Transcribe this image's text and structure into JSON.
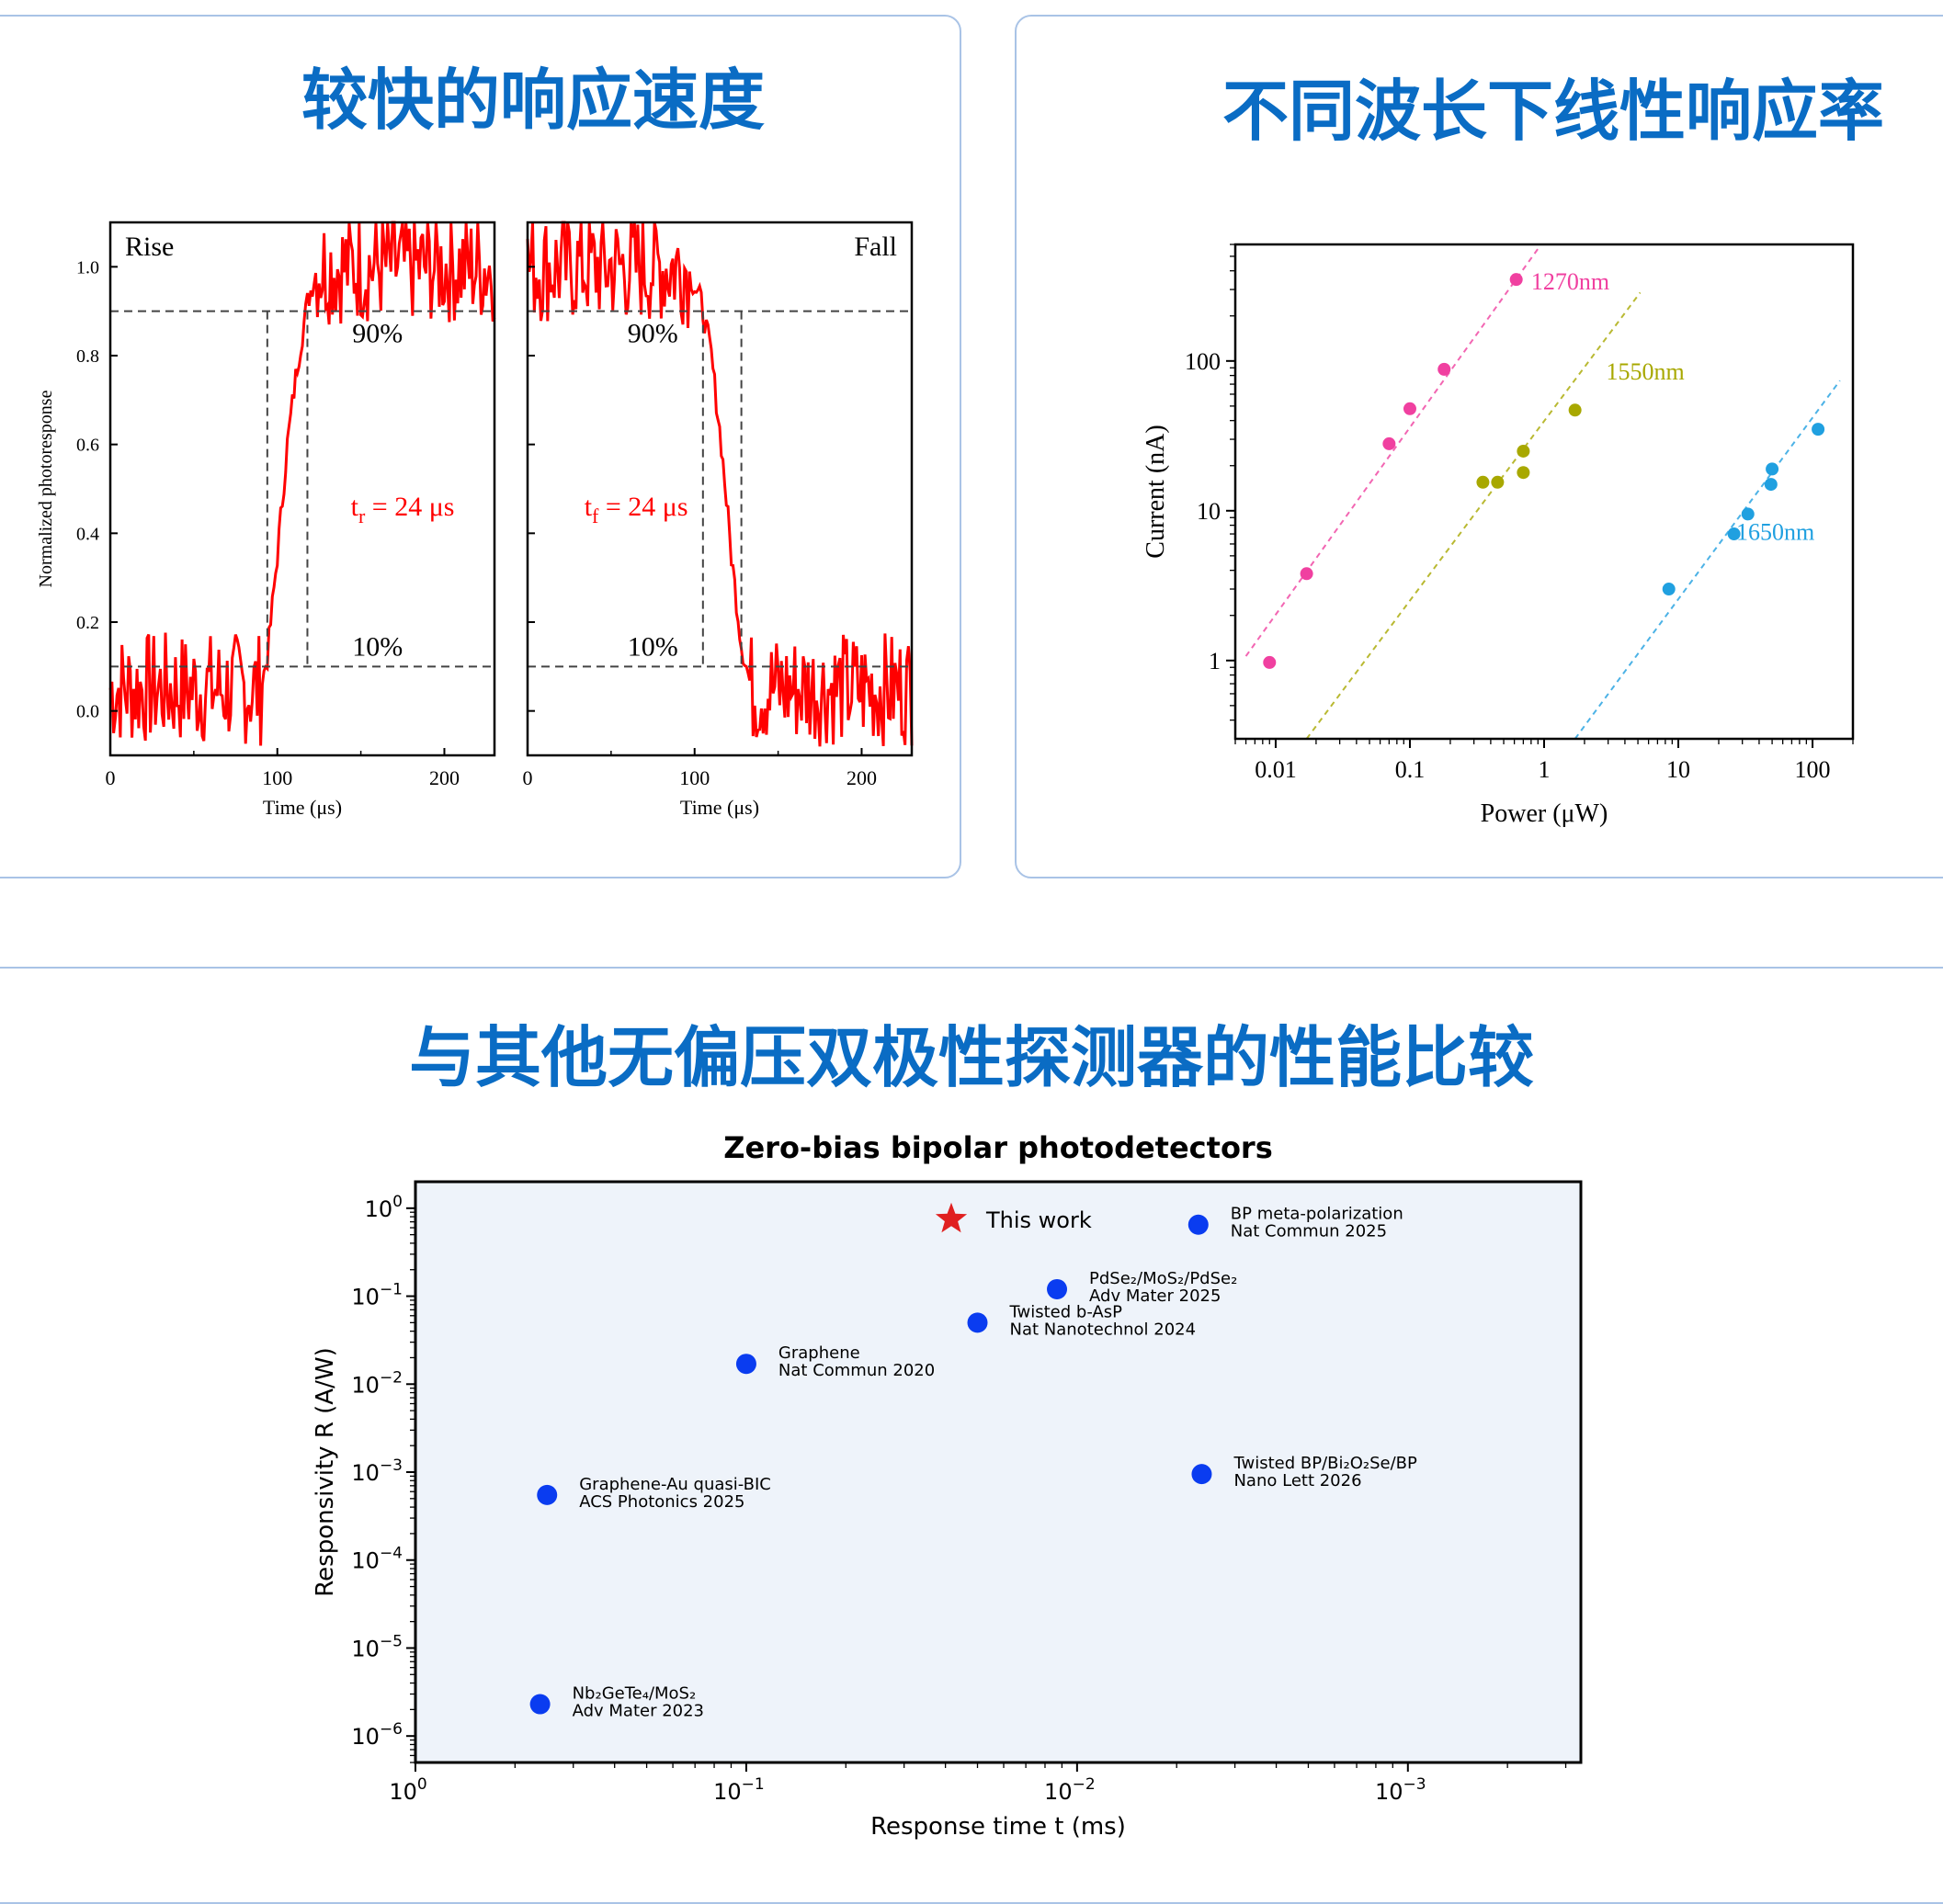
{
  "panels": {
    "speed_title": "较快的响应速度",
    "linear_title": "不同波长下线性响应率",
    "compare_title": "与其他无偏压双极性探测器的性能比较"
  },
  "colors": {
    "title_blue": "#0a6cc4",
    "trace_red": "#ff0000",
    "pink": "#f040a0",
    "olive": "#a8a800",
    "cyan": "#20a0e0",
    "marker_blue": "#0a3cf0",
    "star_red": "#e02020",
    "plot_bg": "#eef3fa"
  },
  "chart_data": [
    {
      "type": "line",
      "subplot": "rise",
      "label": "Rise",
      "ylabel": "Normalized photoresponse",
      "xlabel": "Time (μs)",
      "xlim": [
        0,
        230
      ],
      "ylim": [
        -0.1,
        1.1
      ],
      "xticks": [
        0,
        100,
        200
      ],
      "yticks": [
        0.0,
        0.2,
        0.4,
        0.6,
        0.8,
        1.0
      ],
      "ytick_labels": [
        "0.0",
        "0.2",
        "0.4",
        "0.6",
        "0.8",
        "1.0"
      ],
      "threshold_labels": [
        "90%",
        "10%"
      ],
      "annotation": {
        "symbol": "t",
        "sub": "r",
        "text": " = 24 μs"
      },
      "trace": {
        "x": [
          0,
          90,
          94,
          100,
          106,
          112,
          118,
          124,
          230
        ],
        "y": [
          0.05,
          0.05,
          0.12,
          0.35,
          0.6,
          0.78,
          0.92,
          1.0,
          1.0
        ]
      }
    },
    {
      "type": "line",
      "subplot": "fall",
      "label": "Fall",
      "xlabel": "Time (μs)",
      "xlim": [
        0,
        230
      ],
      "ylim": [
        -0.1,
        1.1
      ],
      "xticks": [
        0,
        100,
        200
      ],
      "threshold_labels": [
        "90%",
        "10%"
      ],
      "annotation": {
        "symbol": "t",
        "sub": "f",
        "text": " = 24 μs"
      },
      "trace": {
        "x": [
          0,
          95,
          104,
          110,
          116,
          122,
          128,
          134,
          230
        ],
        "y": [
          1.0,
          1.0,
          0.92,
          0.8,
          0.6,
          0.35,
          0.15,
          0.05,
          0.05
        ]
      }
    },
    {
      "type": "scatter",
      "subplot": "linear",
      "xlabel": "Power (μW)",
      "ylabel": "Current (nA)",
      "xscale": "log",
      "yscale": "log",
      "xlim": [
        0.005,
        200
      ],
      "ylim": [
        0.3,
        600
      ],
      "xtick_labels": [
        "0.01",
        "0.1",
        "1",
        "10",
        "100"
      ],
      "ytick_labels": [
        "1",
        "10",
        "100"
      ],
      "series": [
        {
          "name": "1270nm",
          "x": [
            0.009,
            0.017,
            0.07,
            0.1,
            0.18,
            0.62
          ],
          "y": [
            0.97,
            3.8,
            28,
            48,
            88,
            350
          ]
        },
        {
          "name": "1550nm",
          "x": [
            0.35,
            0.45,
            0.7,
            0.7,
            1.7
          ],
          "y": [
            15.5,
            15.5,
            18,
            25,
            47
          ]
        },
        {
          "name": "1650nm",
          "x": [
            8.5,
            26,
            33,
            49,
            50,
            110
          ],
          "y": [
            3.0,
            7.0,
            9.5,
            15,
            19,
            35
          ]
        }
      ]
    },
    {
      "type": "scatter",
      "subplot": "compare",
      "title": "Zero-bias bipolar photodetectors",
      "xlabel": "Response time t (ms)",
      "ylabel": "Responsivity R (A/W)",
      "xscale": "log",
      "yscale": "log",
      "x_inverted": true,
      "xlim": [
        1,
        0.0003
      ],
      "ylim": [
        5e-07,
        2
      ],
      "xtick_exponents": [
        "0",
        "−1",
        "−2",
        "−3"
      ],
      "ytick_exponents": [
        "0",
        "−1",
        "−2",
        "−3",
        "−4",
        "−5",
        "−6"
      ],
      "points": [
        {
          "lines": [
            "This work"
          ],
          "x": 0.024,
          "y": 0.75,
          "marker": "star"
        },
        {
          "lines": [
            "BP meta-polarization",
            "Nat Commun 2025"
          ],
          "x": 0.0043,
          "y": 0.65,
          "marker": "circle"
        },
        {
          "lines": [
            "PdSe₂/MoS₂/PdSe₂",
            "Adv Mater 2025"
          ],
          "x": 0.0115,
          "y": 0.12,
          "marker": "circle"
        },
        {
          "lines": [
            "Twisted b-AsP",
            "Nat Nanotechnol 2024"
          ],
          "x": 0.02,
          "y": 0.05,
          "marker": "circle"
        },
        {
          "lines": [
            "Graphene",
            "Nat Commun 2020"
          ],
          "x": 0.1,
          "y": 0.017,
          "marker": "circle"
        },
        {
          "lines": [
            "Graphene-Au quasi-BIC",
            "ACS Photonics 2025"
          ],
          "x": 0.4,
          "y": 0.00055,
          "marker": "circle"
        },
        {
          "lines": [
            "Twisted BP/Bi₂O₂Se/BP",
            "Nano Lett 2026"
          ],
          "x": 0.0042,
          "y": 0.00095,
          "marker": "circle"
        },
        {
          "lines": [
            "Nb₂GeTe₄/MoS₂",
            "Adv Mater 2023"
          ],
          "x": 0.42,
          "y": 2.3e-06,
          "marker": "circle"
        }
      ]
    }
  ]
}
